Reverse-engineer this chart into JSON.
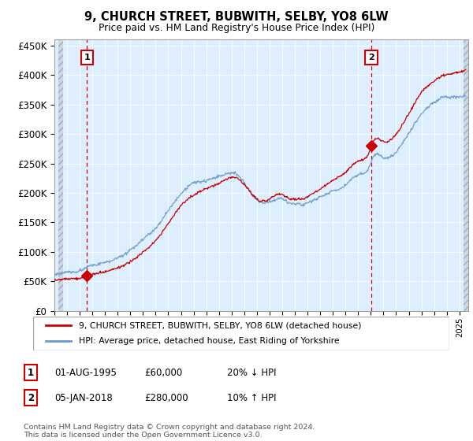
{
  "title": "9, CHURCH STREET, BUBWITH, SELBY, YO8 6LW",
  "subtitle": "Price paid vs. HM Land Registry's House Price Index (HPI)",
  "ylim": [
    0,
    460000
  ],
  "yticks": [
    0,
    50000,
    100000,
    150000,
    200000,
    250000,
    300000,
    350000,
    400000,
    450000
  ],
  "ytick_labels": [
    "£0",
    "£50K",
    "£100K",
    "£150K",
    "£200K",
    "£250K",
    "£300K",
    "£350K",
    "£400K",
    "£450K"
  ],
  "xlim_start": 1993.3,
  "xlim_end": 2025.7,
  "sale1_date": 1995.58,
  "sale1_price": 60000,
  "sale1_label": "1",
  "sale2_date": 2018.03,
  "sale2_price": 280000,
  "sale2_label": "2",
  "sale_color": "#cc0000",
  "hpi_color": "#6699cc",
  "legend_line1": "9, CHURCH STREET, BUBWITH, SELBY, YO8 6LW (detached house)",
  "legend_line2": "HPI: Average price, detached house, East Riding of Yorkshire",
  "table_row1": [
    "1",
    "01-AUG-1995",
    "£60,000",
    "20% ↓ HPI"
  ],
  "table_row2": [
    "2",
    "05-JAN-2018",
    "£280,000",
    "10% ↑ HPI"
  ],
  "footnote": "Contains HM Land Registry data © Crown copyright and database right 2024.\nThis data is licensed under the Open Government Licence v3.0.",
  "background_color": "#ddeeff",
  "hatch_bg": "#c8d8e8"
}
